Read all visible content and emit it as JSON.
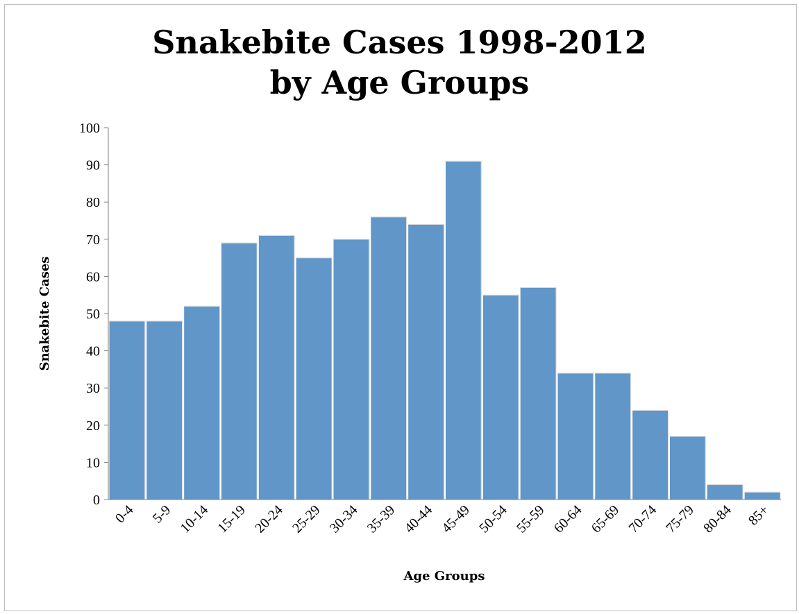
{
  "chart_data": {
    "type": "bar",
    "title_lines": [
      "Snakebite Cases 1998-2012",
      "by Age Groups"
    ],
    "xlabel": "Age Groups",
    "ylabel": "Snakebite Cases",
    "categories": [
      "0-4",
      "5-9",
      "10-14",
      "15-19",
      "20-24",
      "25-29",
      "30-34",
      "35-39",
      "40-44",
      "45-49",
      "50-54",
      "55-59",
      "60-64",
      "65-69",
      "70-74",
      "75-79",
      "80-84",
      "85+"
    ],
    "values": [
      48,
      48,
      52,
      69,
      71,
      65,
      70,
      76,
      74,
      91,
      55,
      57,
      34,
      34,
      24,
      17,
      4,
      2
    ],
    "ylim": [
      0,
      100
    ],
    "yticks": [
      0,
      10,
      20,
      30,
      40,
      50,
      60,
      70,
      80,
      90,
      100
    ],
    "grid": false,
    "legend": "none",
    "bar_color": "#6196c8"
  }
}
